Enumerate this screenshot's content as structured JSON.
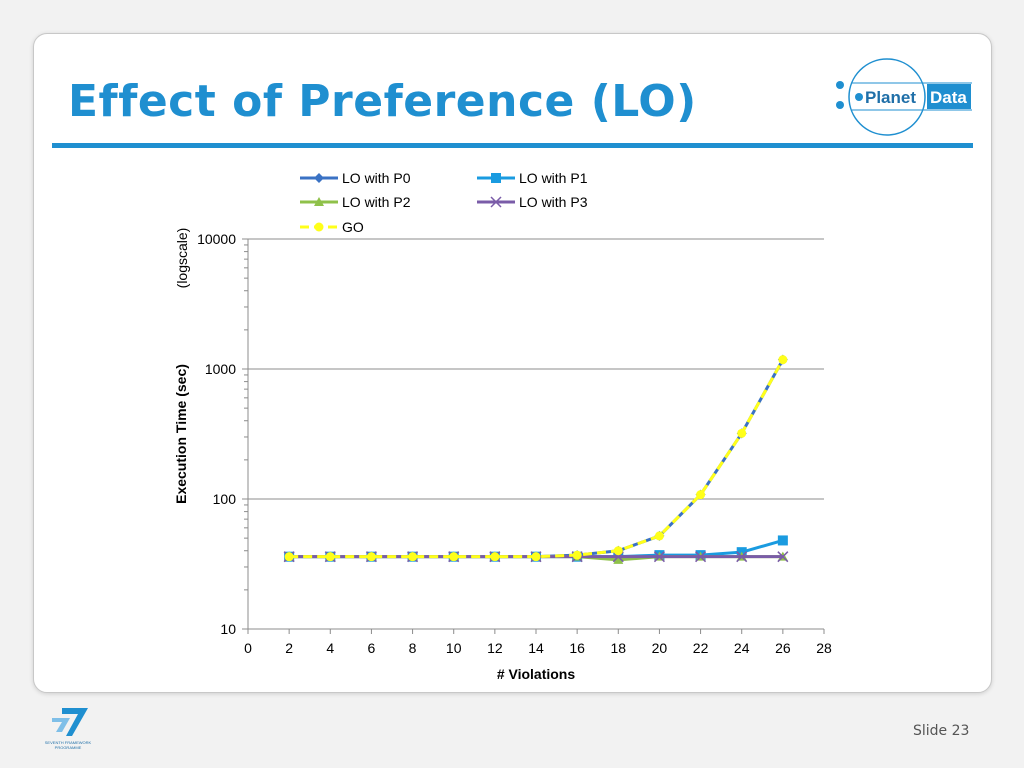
{
  "slide": {
    "title": "Effect of Preference (LO)",
    "logo_text": "Planet Data",
    "footer_logo_text": "SEVENTH FRAMEWORK PROGRAMME",
    "slide_number": "Slide 23"
  },
  "colors": {
    "accent": "#1f8fd0",
    "p0": "#3a72c4",
    "p1": "#1a9be0",
    "p2": "#8fc14a",
    "p3": "#7a5ca8",
    "go": "#ffff1a"
  },
  "chart_data": {
    "type": "line",
    "title": "",
    "xlabel": "# Violations",
    "ylabel": "Execution Time (sec)",
    "ylabel_note": "(logscale)",
    "y_scale": "log",
    "xlim": [
      0,
      28
    ],
    "ylim": [
      10,
      10000
    ],
    "x_ticks": [
      0,
      2,
      4,
      6,
      8,
      10,
      12,
      14,
      16,
      18,
      20,
      22,
      24,
      26,
      28
    ],
    "y_ticks": [
      10,
      100,
      1000,
      10000
    ],
    "grid": "horizontal",
    "legend_position": "top",
    "x": [
      2,
      4,
      6,
      8,
      10,
      12,
      14,
      16,
      18,
      20,
      22,
      24,
      26
    ],
    "series": [
      {
        "name": "LO with P0",
        "marker": "diamond",
        "color": "#3a72c4",
        "values": [
          36,
          36,
          36,
          36,
          36,
          36,
          36,
          37,
          40,
          52,
          108,
          320,
          1180
        ]
      },
      {
        "name": "LO with P1",
        "marker": "square",
        "color": "#1a9be0",
        "values": [
          36,
          36,
          36,
          36,
          36,
          36,
          36,
          36,
          36,
          37,
          37,
          39,
          48
        ]
      },
      {
        "name": "LO with P2",
        "marker": "triangle",
        "color": "#8fc14a",
        "values": [
          36,
          36,
          36,
          36,
          36,
          36,
          36,
          36,
          34,
          36,
          36,
          36,
          36
        ]
      },
      {
        "name": "LO with P3",
        "marker": "x",
        "color": "#7a5ca8",
        "values": [
          36,
          36,
          36,
          36,
          36,
          36,
          36,
          36,
          36,
          36,
          36,
          36,
          36
        ]
      },
      {
        "name": "GO",
        "marker": "circle",
        "color": "#ffff1a",
        "dashed": true,
        "values": [
          36,
          36,
          36,
          36,
          36,
          36,
          36,
          37,
          40,
          52,
          108,
          320,
          1180
        ]
      }
    ]
  }
}
